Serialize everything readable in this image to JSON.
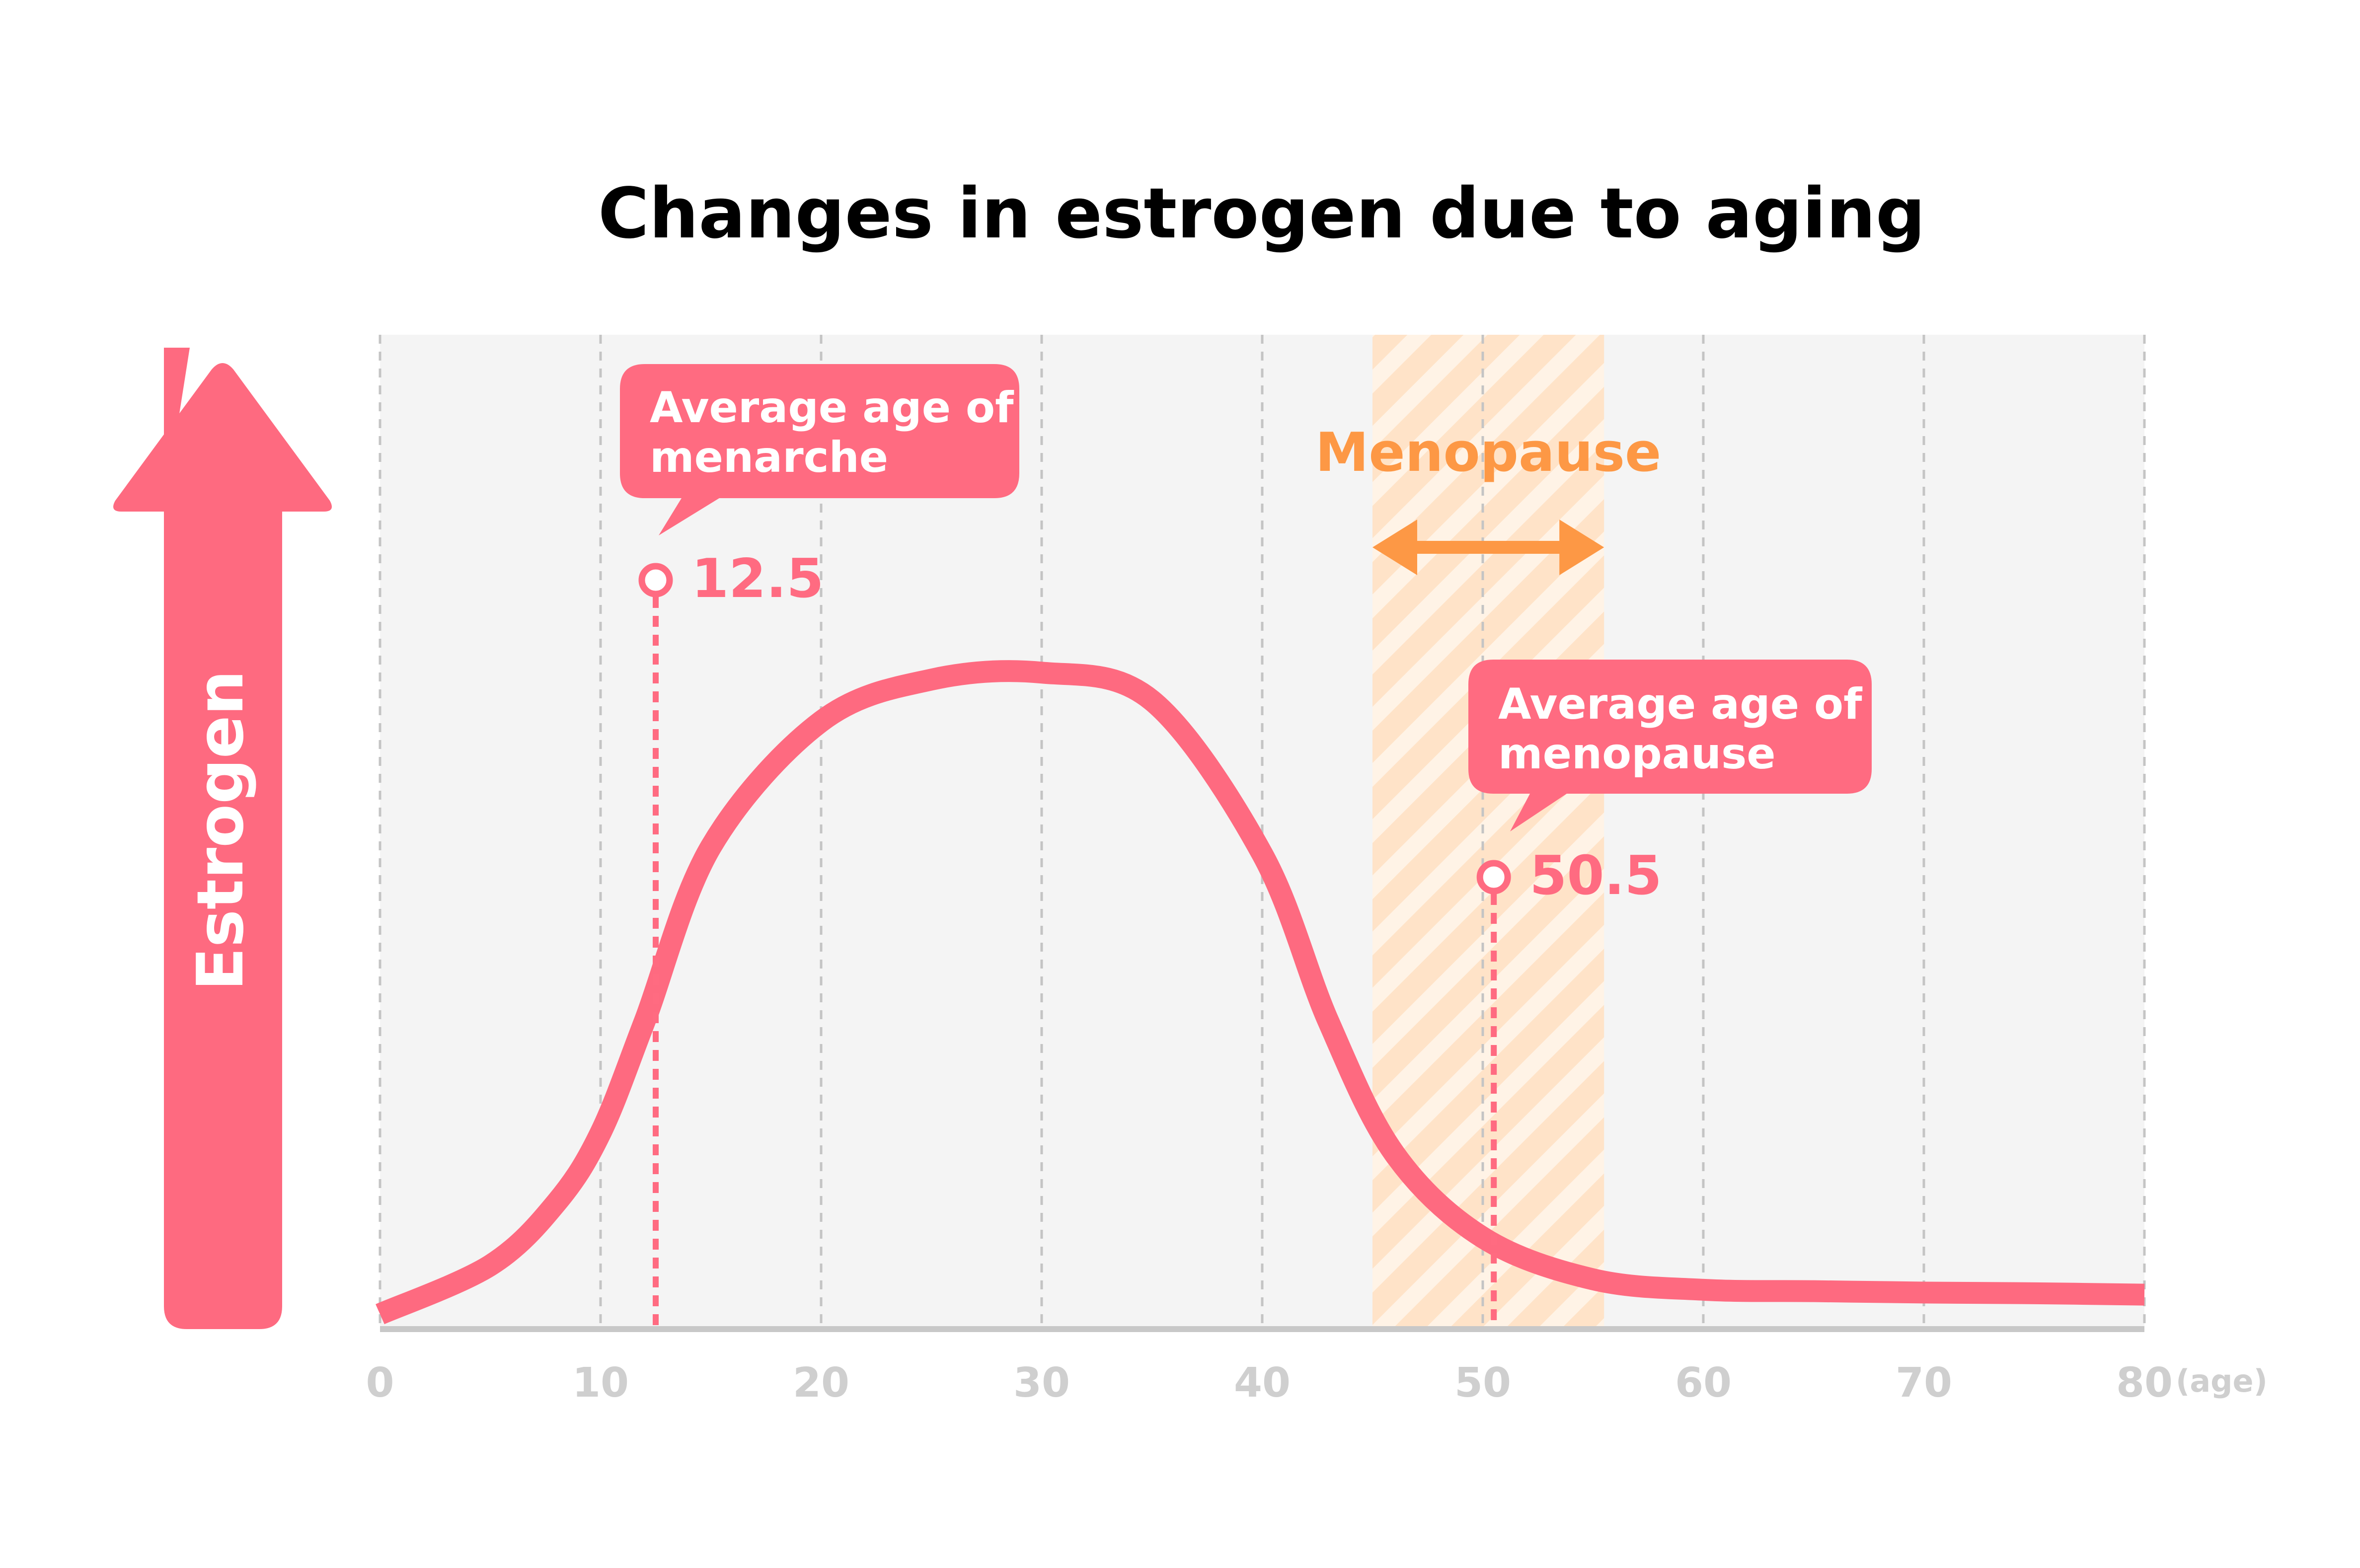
{
  "chart_data": {
    "type": "line",
    "title": "Changes in estrogen due to aging",
    "xlabel": "(age)",
    "ylabel": "Estrogen",
    "xlim": [
      0,
      80
    ],
    "ylim": [
      0,
      100
    ],
    "x_ticks": [
      "0",
      "10",
      "20",
      "30",
      "40",
      "50",
      "60",
      "70",
      "80"
    ],
    "grid": true,
    "series": [
      {
        "name": "Estrogen",
        "x": [
          0,
          5,
          8,
          10,
          12,
          15,
          20,
          25,
          30,
          35,
          40,
          43,
          46,
          50,
          55,
          60,
          65,
          70,
          75,
          80
        ],
        "values": [
          1,
          8,
          17,
          27,
          43,
          68,
          86,
          92,
          93,
          89,
          67,
          43,
          24,
          12,
          6,
          4.5,
          4.3,
          4.1,
          4.0,
          3.8
        ]
      }
    ],
    "annotations": [
      {
        "id": "menarche",
        "x": 12.5,
        "label_lines": [
          "Average age of",
          "menarche"
        ],
        "value_text": "12.5"
      },
      {
        "id": "menopause",
        "x": 50.5,
        "label_lines": [
          "Average age of",
          "menopause"
        ],
        "value_text": "50.5"
      }
    ],
    "shaded_region": {
      "label": "Menopause",
      "x_start": 45,
      "x_end": 55.5
    },
    "colors": {
      "curve": "#fe6a80",
      "annotation": "#ff6b81",
      "menopause": "#fd9845",
      "menopause_band": "#ffe3c8",
      "plot_background": "#f4f4f4",
      "axis": "#c8c8c8",
      "tick_text": "#cfcfcf",
      "gridline": "#c4c4c4"
    }
  }
}
